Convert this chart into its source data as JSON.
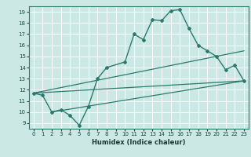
{
  "title": "",
  "xlabel": "Humidex (Indice chaleur)",
  "bg_color": "#cce8e4",
  "grid_color": "#ffffff",
  "line_color": "#2a7a6e",
  "xlim": [
    -0.5,
    23.5
  ],
  "ylim": [
    8.5,
    19.5
  ],
  "xticks": [
    0,
    1,
    2,
    3,
    4,
    5,
    6,
    7,
    8,
    9,
    10,
    11,
    12,
    13,
    14,
    15,
    16,
    17,
    18,
    19,
    20,
    21,
    22,
    23
  ],
  "yticks": [
    9,
    10,
    11,
    12,
    13,
    14,
    15,
    16,
    17,
    18,
    19
  ],
  "series1_x": [
    0,
    1,
    2,
    3,
    4,
    5,
    6,
    7,
    8,
    10,
    11,
    12,
    13,
    14,
    15,
    16,
    17,
    18,
    19,
    20,
    21,
    22,
    23
  ],
  "series1_y": [
    11.7,
    11.5,
    10.0,
    10.2,
    9.7,
    8.8,
    10.5,
    13.0,
    14.0,
    14.5,
    17.0,
    16.5,
    18.3,
    18.2,
    19.1,
    19.2,
    17.5,
    16.0,
    15.5,
    15.0,
    13.8,
    14.2,
    12.8
  ],
  "series2_x": [
    0,
    23
  ],
  "series2_y": [
    11.7,
    12.8
  ],
  "series3_x": [
    0,
    23
  ],
  "series3_y": [
    11.7,
    15.5
  ],
  "series4_x": [
    2,
    23
  ],
  "series4_y": [
    10.0,
    12.8
  ]
}
